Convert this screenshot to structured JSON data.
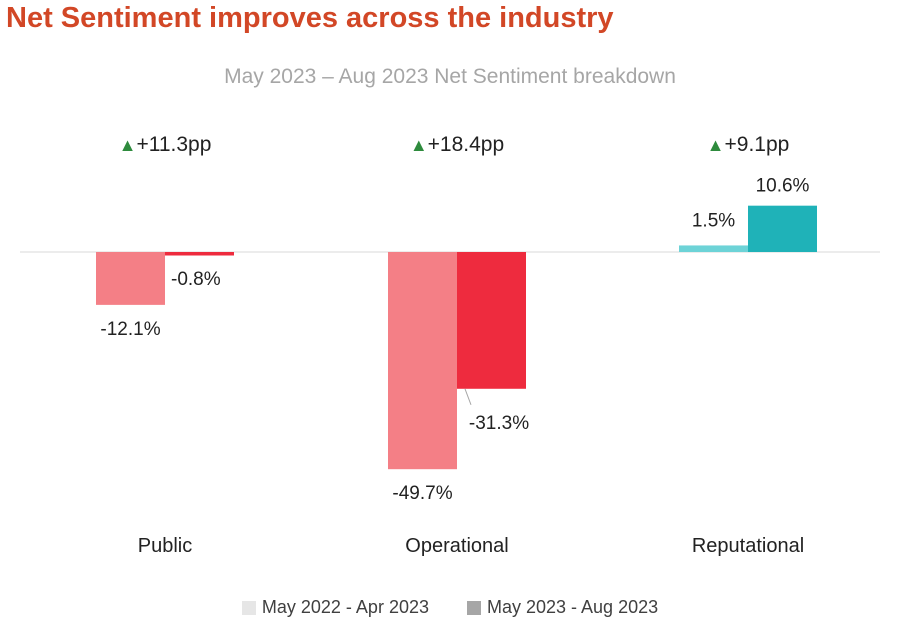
{
  "title": "Net Sentiment improves across the industry",
  "subtitle": "May 2023 – Aug 2023 Net Sentiment breakdown",
  "legend": [
    {
      "label": "May 2022 - Apr 2023",
      "color": "#e6e6e6"
    },
    {
      "label": "May 2023 - Aug 2023",
      "color": "#a6a6a6"
    }
  ],
  "chart_data": {
    "type": "bar",
    "title": "May 2023 – Aug 2023 Net Sentiment breakdown",
    "categories": [
      "Public",
      "Operational",
      "Reputational"
    ],
    "series": [
      {
        "name": "May 2022 - Apr 2023",
        "values": [
          -12.1,
          -49.7,
          1.5
        ],
        "labels": [
          "-12.1%",
          "-49.7%",
          "1.5%"
        ]
      },
      {
        "name": "May 2023 - Aug 2023",
        "values": [
          -0.8,
          -31.3,
          10.6
        ],
        "labels": [
          "-0.8%",
          "-31.3%",
          "10.6%"
        ]
      }
    ],
    "changes": [
      "+11.3pp",
      "+18.4pp",
      "+9.1pp"
    ],
    "change_indicator": "▲",
    "colors": {
      "negative_prev": "#f47f86",
      "negative_curr": "#ee2b3e",
      "positive_prev": "#6dd3d7",
      "positive_curr": "#1fb2b8",
      "change_arrow": "#2e8b3d"
    },
    "ylim": [
      -55,
      15
    ],
    "grid": false
  }
}
